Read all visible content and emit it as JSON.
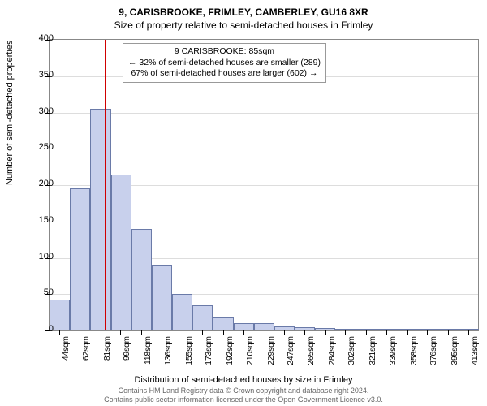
{
  "title_main": "9, CARISBROOKE, FRIMLEY, CAMBERLEY, GU16 8XR",
  "title_sub": "Size of property relative to semi-detached houses in Frimley",
  "y_axis_label": "Number of semi-detached properties",
  "x_axis_label": "Distribution of semi-detached houses by size in Frimley",
  "footer_line1": "Contains HM Land Registry data © Crown copyright and database right 2024.",
  "footer_line2": "Contains public sector information licensed under the Open Government Licence v3.0.",
  "chart": {
    "type": "histogram",
    "ylim": [
      0,
      400
    ],
    "ytick_step": 50,
    "xlim_sqm": [
      35,
      422
    ],
    "x_ticks_sqm": [
      44,
      62,
      81,
      99,
      118,
      136,
      155,
      173,
      192,
      210,
      229,
      247,
      265,
      284,
      302,
      321,
      339,
      358,
      376,
      395,
      413
    ],
    "x_tick_suffix": "sqm",
    "bin_width_sqm": 18.45,
    "bar_fill": "#c8d0ec",
    "bar_stroke": "#6a7aa8",
    "grid_color": "#dddddd",
    "border_color": "#888888",
    "background": "#ffffff",
    "values": [
      42,
      195,
      305,
      215,
      140,
      90,
      50,
      35,
      18,
      10,
      10,
      6,
      4,
      3,
      2,
      2,
      1,
      1,
      1,
      1,
      1
    ],
    "marker_sqm": 85,
    "marker_color": "#d00000",
    "annotation": {
      "line1": "9 CARISBROOKE: 85sqm",
      "line2": "← 32% of semi-detached houses are smaller (289)",
      "line3": "67% of semi-detached houses are larger (602) →",
      "border_color": "#999999",
      "background": "#ffffff"
    }
  }
}
